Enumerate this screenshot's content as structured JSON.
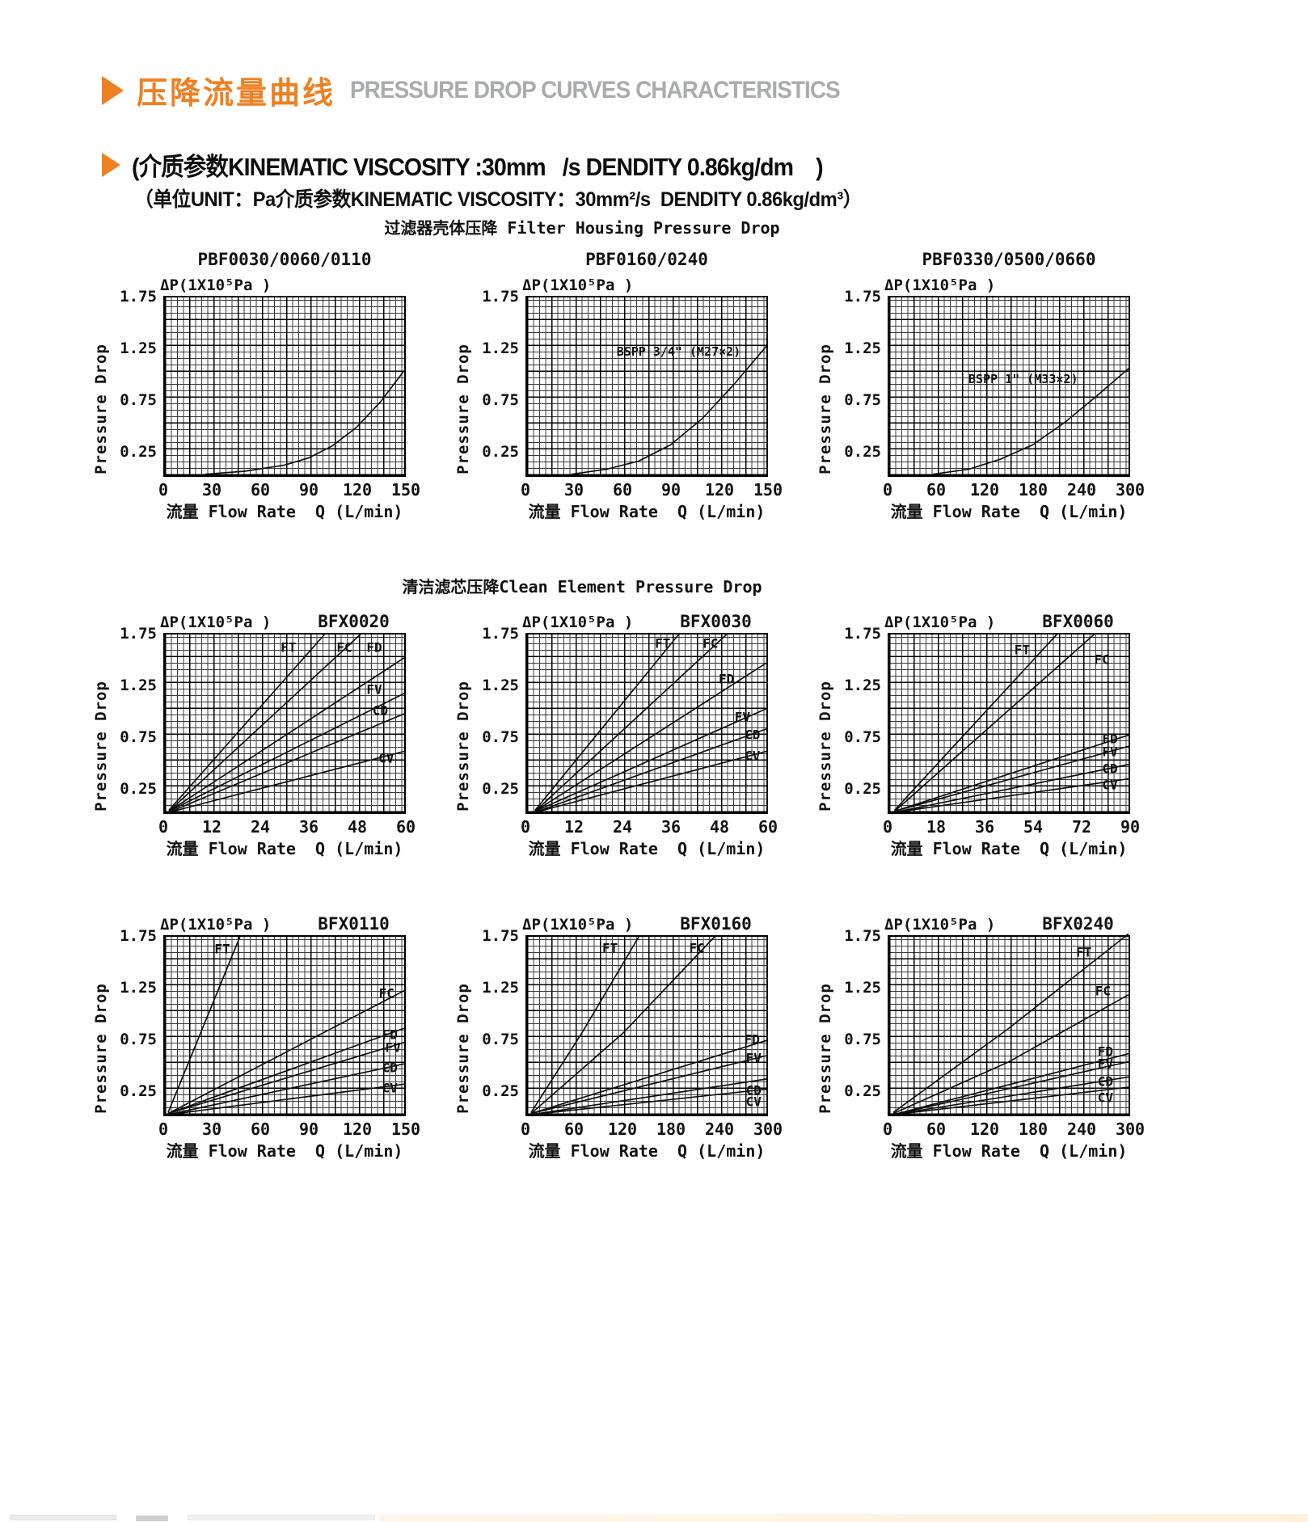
{
  "page": {
    "header": {
      "title_zh": "压降流量曲线",
      "title_en": "PRESSURE DROP CURVES CHARACTERISTICS",
      "accent_color": "#ef8022",
      "gray_color": "#a9abae"
    },
    "viscosity_line": "(介质参数KINEMATIC VISCOSITY :30mm   /s DENDITY 0.86kg/dm    )",
    "unit_line": "（单位UNIT：Pa介质参数KINEMATIC VISCOSITY：30mm²/s  DENDITY 0.86kg/dm³）",
    "sections": {
      "housing": "过滤器壳体压降 Filter Housing Pressure Drop",
      "element": "清洁滤芯压降Clean Element Pressure Drop"
    }
  },
  "chart_data": [
    {
      "type": "line",
      "row": 0,
      "title": "PBF0030/0060/0110",
      "title_position": "above",
      "y_axis_title": "ΔP(1X10⁵Pa )",
      "ylabel": "Pressure Drop",
      "xlabel": "流量 Flow Rate  Q (L/min)",
      "xmax": 150,
      "ymax": 1.75,
      "xticks": [
        0,
        30,
        60,
        90,
        120,
        150
      ],
      "yticks": [
        "1.75",
        "1.25",
        "0.75",
        "0.25"
      ],
      "series": [
        {
          "name": "",
          "points": [
            [
              25,
              0.01
            ],
            [
              50,
              0.04
            ],
            [
              75,
              0.1
            ],
            [
              90,
              0.17
            ],
            [
              105,
              0.29
            ],
            [
              120,
              0.47
            ],
            [
              135,
              0.72
            ],
            [
              150,
              1.03
            ]
          ]
        }
      ]
    },
    {
      "type": "line",
      "row": 0,
      "title": "PBF0160/0240",
      "title_position": "above",
      "y_axis_title": "ΔP(1X10⁵Pa )",
      "ylabel": "Pressure Drop",
      "xlabel": "流量 Flow Rate  Q (L/min)",
      "xmax": 150,
      "ymax": 1.75,
      "xticks": [
        0,
        30,
        60,
        90,
        120,
        150
      ],
      "yticks": [
        "1.75",
        "1.25",
        "0.75",
        "0.25"
      ],
      "annotation": {
        "text": "BSPP 3/4\" (M27×2)",
        "x": 95,
        "y": 1.22
      },
      "series": [
        {
          "name": "",
          "points": [
            [
              28,
              0.01
            ],
            [
              50,
              0.06
            ],
            [
              70,
              0.14
            ],
            [
              90,
              0.3
            ],
            [
              110,
              0.56
            ],
            [
              130,
              0.9
            ],
            [
              150,
              1.27
            ]
          ]
        }
      ]
    },
    {
      "type": "line",
      "row": 0,
      "title": "PBF0330/0500/0660",
      "title_position": "above",
      "y_axis_title": "ΔP(1X10⁵Pa )",
      "ylabel": "Pressure Drop",
      "xlabel": "流量 Flow Rate  Q (L/min)",
      "xmax": 300,
      "ymax": 1.75,
      "xticks": [
        0,
        60,
        120,
        180,
        240,
        300
      ],
      "yticks": [
        "1.75",
        "1.25",
        "0.75",
        "0.25"
      ],
      "annotation": {
        "text": "BSPP 1\" (M33×2)",
        "x": 168,
        "y": 0.95
      },
      "series": [
        {
          "name": "",
          "points": [
            [
              55,
              0.01
            ],
            [
              100,
              0.06
            ],
            [
              140,
              0.16
            ],
            [
              180,
              0.3
            ],
            [
              220,
              0.52
            ],
            [
              260,
              0.78
            ],
            [
              300,
              1.05
            ]
          ]
        }
      ]
    },
    {
      "type": "line",
      "row": 1,
      "title": "BFX0020",
      "title_position": "inline",
      "y_axis_title": "ΔP(1X10⁵Pa )",
      "ylabel": "Pressure Drop",
      "xlabel": "流量 Flow Rate  Q (L/min)",
      "xmax": 60,
      "ymax": 1.75,
      "xticks": [
        0,
        12,
        24,
        36,
        48,
        60
      ],
      "yticks": [
        "1.75",
        "1.25",
        "0.75",
        "0.25"
      ],
      "series": [
        {
          "name": "FT",
          "points": [
            [
              1,
              0.02
            ],
            [
              40,
              1.75
            ]
          ],
          "label_pos": [
            31,
            1.62
          ]
        },
        {
          "name": "FC",
          "points": [
            [
              1,
              0.01
            ],
            [
              49,
              1.75
            ]
          ],
          "label_pos": [
            45,
            1.62
          ]
        },
        {
          "name": "FD",
          "points": [
            [
              1,
              0.01
            ],
            [
              60,
              1.52
            ]
          ],
          "label_pos": [
            52.5,
            1.62
          ]
        },
        {
          "name": "FV",
          "points": [
            [
              1,
              0.01
            ],
            [
              60,
              1.17
            ]
          ],
          "label_pos": [
            52.5,
            1.21
          ]
        },
        {
          "name": "CD",
          "points": [
            [
              1,
              0.0
            ],
            [
              60,
              0.97
            ]
          ],
          "label_pos": [
            54,
            1.0
          ]
        },
        {
          "name": "CV",
          "points": [
            [
              1,
              0.0
            ],
            [
              60,
              0.6
            ]
          ],
          "label_pos": [
            55.5,
            0.53
          ]
        }
      ]
    },
    {
      "type": "line",
      "row": 1,
      "title": "BFX0030",
      "title_position": "inline",
      "y_axis_title": "ΔP(1X10⁵Pa )",
      "ylabel": "Pressure Drop",
      "xlabel": "流量 Flow Rate  Q (L/min)",
      "xmax": 60,
      "ymax": 1.75,
      "xticks": [
        0,
        12,
        24,
        36,
        48,
        60
      ],
      "yticks": [
        "1.75",
        "1.25",
        "0.75",
        "0.25"
      ],
      "series": [
        {
          "name": "FT",
          "points": [
            [
              2,
              0.02
            ],
            [
              38,
              1.75
            ]
          ],
          "label_pos": [
            34,
            1.66
          ]
        },
        {
          "name": "FC",
          "points": [
            [
              2,
              0.01
            ],
            [
              50,
              1.75
            ]
          ],
          "label_pos": [
            46,
            1.66
          ]
        },
        {
          "name": "FD",
          "points": [
            [
              2,
              0.01
            ],
            [
              60,
              1.47
            ]
          ],
          "label_pos": [
            50,
            1.31
          ]
        },
        {
          "name": "FV",
          "points": [
            [
              2,
              0.01
            ],
            [
              60,
              1.02
            ]
          ],
          "label_pos": [
            54,
            0.94
          ]
        },
        {
          "name": "CD",
          "points": [
            [
              2,
              0.0
            ],
            [
              60,
              0.82
            ]
          ],
          "label_pos": [
            56.5,
            0.76
          ]
        },
        {
          "name": "CV",
          "points": [
            [
              2,
              0.0
            ],
            [
              60,
              0.6
            ]
          ],
          "label_pos": [
            56.5,
            0.56
          ]
        }
      ]
    },
    {
      "type": "line",
      "row": 1,
      "title": "BFX0060",
      "title_position": "inline",
      "y_axis_title": "ΔP(1X10⁵Pa )",
      "ylabel": "Pressure Drop",
      "xlabel": "流量 Flow Rate  Q (L/min)",
      "xmax": 90,
      "ymax": 1.75,
      "xticks": [
        0,
        18,
        36,
        54,
        72,
        90
      ],
      "yticks": [
        "1.75",
        "1.25",
        "0.75",
        "0.25"
      ],
      "series": [
        {
          "name": "FT",
          "points": [
            [
              2,
              0.02
            ],
            [
              63,
              1.75
            ]
          ],
          "label_pos": [
            50,
            1.6
          ]
        },
        {
          "name": "FC",
          "points": [
            [
              2,
              0.01
            ],
            [
              77,
              1.75
            ]
          ],
          "label_pos": [
            80,
            1.5
          ]
        },
        {
          "name": "FD",
          "points": [
            [
              2,
              0.01
            ],
            [
              90,
              0.76
            ]
          ],
          "label_pos": [
            83,
            0.72
          ]
        },
        {
          "name": "FV",
          "points": [
            [
              2,
              0.01
            ],
            [
              90,
              0.65
            ]
          ],
          "label_pos": [
            83,
            0.6
          ]
        },
        {
          "name": "CD",
          "points": [
            [
              2,
              0.0
            ],
            [
              90,
              0.47
            ]
          ],
          "label_pos": [
            83,
            0.43
          ]
        },
        {
          "name": "CV",
          "points": [
            [
              2,
              0.0
            ],
            [
              90,
              0.33
            ]
          ],
          "label_pos": [
            83,
            0.27
          ]
        }
      ]
    },
    {
      "type": "line",
      "row": 2,
      "title": "BFX0110",
      "title_position": "inline",
      "y_axis_title": "ΔP(1X10⁵Pa )",
      "ylabel": "Pressure Drop",
      "xlabel": "流量 Flow Rate  Q (L/min)",
      "xmax": 150,
      "ymax": 1.75,
      "xticks": [
        0,
        30,
        60,
        90,
        120,
        150
      ],
      "yticks": [
        "1.75",
        "1.25",
        "0.75",
        "0.25"
      ],
      "series": [
        {
          "name": "FT",
          "points": [
            [
              2,
              0.02
            ],
            [
              47,
              1.75
            ]
          ],
          "label_pos": [
            36,
            1.63
          ]
        },
        {
          "name": "FC",
          "points": [
            [
              2,
              0.01
            ],
            [
              150,
              1.22
            ]
          ],
          "label_pos": [
            139,
            1.19
          ]
        },
        {
          "name": "FD",
          "points": [
            [
              2,
              0.01
            ],
            [
              150,
              0.85
            ]
          ],
          "label_pos": [
            141,
            0.79
          ]
        },
        {
          "name": "FV",
          "points": [
            [
              2,
              0.01
            ],
            [
              150,
              0.71
            ]
          ],
          "label_pos": [
            143,
            0.66
          ]
        },
        {
          "name": "CD",
          "points": [
            [
              2,
              0.0
            ],
            [
              150,
              0.5
            ]
          ],
          "label_pos": [
            141,
            0.46
          ]
        },
        {
          "name": "CV",
          "points": [
            [
              2,
              0.0
            ],
            [
              150,
              0.3
            ]
          ],
          "label_pos": [
            141,
            0.26
          ]
        }
      ]
    },
    {
      "type": "line",
      "row": 2,
      "title": "BFX0160",
      "title_position": "inline",
      "y_axis_title": "ΔP(1X10⁵Pa )",
      "ylabel": "Pressure Drop",
      "xlabel": "流量 Flow Rate  Q (L/min)",
      "xmax": 300,
      "ymax": 1.75,
      "xticks": [
        0,
        60,
        120,
        180,
        240,
        300
      ],
      "yticks": [
        "1.75",
        "1.25",
        "0.75",
        "0.25"
      ],
      "series": [
        {
          "name": "FT",
          "points": [
            [
              5,
              0.02
            ],
            [
              70,
              0.82
            ],
            [
              140,
              1.75
            ]
          ],
          "label_pos": [
            104,
            1.64
          ]
        },
        {
          "name": "FC",
          "points": [
            [
              5,
              0.01
            ],
            [
              120,
              0.8
            ],
            [
              235,
              1.75
            ]
          ],
          "label_pos": [
            213,
            1.64
          ]
        },
        {
          "name": "FD",
          "points": [
            [
              5,
              0.01
            ],
            [
              300,
              0.73
            ]
          ],
          "label_pos": [
            282,
            0.74
          ]
        },
        {
          "name": "FV",
          "points": [
            [
              5,
              0.01
            ],
            [
              300,
              0.58
            ]
          ],
          "label_pos": [
            284,
            0.56
          ]
        },
        {
          "name": "CD",
          "points": [
            [
              5,
              0.0
            ],
            [
              300,
              0.35
            ]
          ],
          "label_pos": [
            284,
            0.24
          ]
        },
        {
          "name": "CV",
          "points": [
            [
              5,
              0.0
            ],
            [
              300,
              0.25
            ]
          ],
          "label_pos": [
            284,
            0.13
          ]
        }
      ]
    },
    {
      "type": "line",
      "row": 2,
      "title": "BFX0240",
      "title_position": "inline",
      "y_axis_title": "ΔP(1X10⁵Pa )",
      "ylabel": "Pressure Drop",
      "xlabel": "流量 Flow Rate  Q (L/min)",
      "xmax": 300,
      "ymax": 1.75,
      "xticks": [
        0,
        60,
        120,
        180,
        240,
        300
      ],
      "yticks": [
        "1.75",
        "1.25",
        "0.75",
        "0.25"
      ],
      "series": [
        {
          "name": "FT",
          "points": [
            [
              5,
              0.02
            ],
            [
              150,
              0.85
            ],
            [
              300,
              1.78
            ]
          ],
          "label_pos": [
            244,
            1.6
          ]
        },
        {
          "name": "FC",
          "points": [
            [
              5,
              0.01
            ],
            [
              150,
              0.52
            ],
            [
              300,
              1.18
            ]
          ],
          "label_pos": [
            268,
            1.22
          ]
        },
        {
          "name": "FD",
          "points": [
            [
              5,
              0.0
            ],
            [
              300,
              0.6
            ]
          ],
          "label_pos": [
            271,
            0.62
          ]
        },
        {
          "name": "FV",
          "points": [
            [
              5,
              0.0
            ],
            [
              300,
              0.52
            ]
          ],
          "label_pos": [
            271,
            0.5
          ]
        },
        {
          "name": "CD",
          "points": [
            [
              5,
              0.0
            ],
            [
              300,
              0.37
            ]
          ],
          "label_pos": [
            271,
            0.33
          ]
        },
        {
          "name": "CV",
          "points": [
            [
              5,
              0.0
            ],
            [
              300,
              0.27
            ]
          ],
          "label_pos": [
            271,
            0.17
          ]
        }
      ]
    }
  ]
}
